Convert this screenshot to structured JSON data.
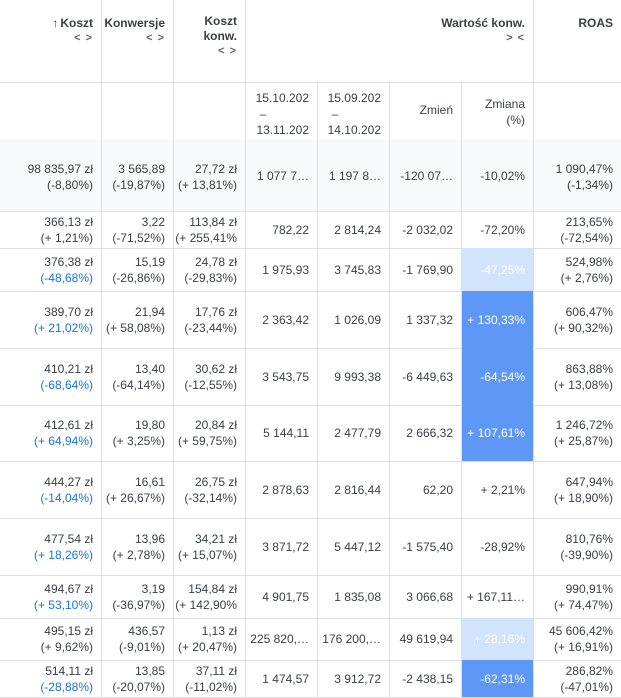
{
  "header": {
    "cost_label": "Koszt",
    "cost_sort_icon": "↑",
    "conversions_label": "Konwersje",
    "cost_per_conv_label_line1": "Koszt",
    "cost_per_conv_label_line2": "konw.",
    "conv_value_label": "Wartość konw.",
    "roas_label": "ROAS",
    "expander": "< >",
    "collapser": "> <"
  },
  "subheader": {
    "period1_line1": "15.10.202",
    "period1_line2": "–",
    "period1_line3": "13.11.202",
    "period2_line1": "15.09.202",
    "period2_line2": "–",
    "period2_line3": "14.10.202",
    "change_label": "Zmień",
    "change_pct_line1": "Zmiana",
    "change_pct_line2": "(%)"
  },
  "total": {
    "cost": "98 835,97 zł",
    "cost_d": "(-8,80%)",
    "conv": "3 565,89",
    "conv_d": "(-19,87%)",
    "cpc": "27,72 zł",
    "cpc_d": "(+ 13,81%)",
    "p1": "1 077 7…",
    "p2": "1 197 8…",
    "chg": "-120 07…",
    "chg_pct": "-10,02%",
    "roas": "1 090,47%",
    "roas_d": "(-1,34%)"
  },
  "rows": [
    {
      "cost": "366,13 zł",
      "cost_d": "(+ 1,21%)",
      "conv": "3,22",
      "conv_d": "(-71,52%)",
      "cpc": "113,84 zł",
      "cpc_d": "(+ 255,41%",
      "p1": "782,22",
      "p2": "2 814,24",
      "chg": "-2 032,02",
      "chg_pct": "-72,20%",
      "roas": "213,65%",
      "roas_d": "(-72,54%)"
    },
    {
      "cost": "376,38 zł",
      "cost_d": "(-48,68%)",
      "conv": "15,19",
      "conv_d": "(-26,86%)",
      "cpc": "24,78 zł",
      "cpc_d": "(-29,83%)",
      "p1": "1 975,93",
      "p2": "3 745,83",
      "chg": "-1 769,90",
      "chg_pct": "-47,25%",
      "roas": "524,98%",
      "roas_d": "(+ 2,76%)"
    },
    {
      "cost": "389,70 zł",
      "cost_d": "(+ 21,02%)",
      "conv": "21,94",
      "conv_d": "(+ 58,08%)",
      "cpc": "17,76 zł",
      "cpc_d": "(-23,44%)",
      "p1": "2 363,42",
      "p2": "1 026,09",
      "chg": "1 337,32",
      "chg_pct": "+ 130,33%",
      "roas": "606,47%",
      "roas_d": "(+ 90,32%)"
    },
    {
      "cost": "410,21 zł",
      "cost_d": "(-68,64%)",
      "conv": "13,40",
      "conv_d": "(-64,14%)",
      "cpc": "30,62 zł",
      "cpc_d": "(-12,55%)",
      "p1": "3 543,75",
      "p2": "9 993,38",
      "chg": "-6 449,63",
      "chg_pct": "-64,54%",
      "roas": "863,88%",
      "roas_d": "(+ 13,08%)"
    },
    {
      "cost": "412,61 zł",
      "cost_d": "(+ 64,94%)",
      "conv": "19,80",
      "conv_d": "(+ 3,25%)",
      "cpc": "20,84 zł",
      "cpc_d": "(+ 59,75%)",
      "p1": "5 144,11",
      "p2": "2 477,79",
      "chg": "2 666,32",
      "chg_pct": "+ 107,61%",
      "roas": "1 246,72%",
      "roas_d": "(+ 25,87%)"
    },
    {
      "cost": "444,27 zł",
      "cost_d": "(-14,04%)",
      "conv": "16,61",
      "conv_d": "(+ 26,67%)",
      "cpc": "26,75 zł",
      "cpc_d": "(-32,14%)",
      "p1": "2 878,63",
      "p2": "2 816,44",
      "chg": "62,20",
      "chg_pct": "+ 2,21%",
      "roas": "647,94%",
      "roas_d": "(+ 18,90%)"
    },
    {
      "cost": "477,54 zł",
      "cost_d": "(+ 18,26%)",
      "conv": "13,96",
      "conv_d": "(+ 2,78%)",
      "cpc": "34,21 zł",
      "cpc_d": "(+ 15,07%)",
      "p1": "3 871,72",
      "p2": "5 447,12",
      "chg": "-1 575,40",
      "chg_pct": "-28,92%",
      "roas": "810,76%",
      "roas_d": "(-39,90%)"
    },
    {
      "cost": "494,67 zł",
      "cost_d": "(+ 53,10%)",
      "conv": "3,19",
      "conv_d": "(-36,97%)",
      "cpc": "154,84 zł",
      "cpc_d": "(+ 142,90%",
      "p1": "4 901,75",
      "p2": "1 835,08",
      "chg": "3 066,68",
      "chg_pct": "+ 167,11…",
      "roas": "990,91%",
      "roas_d": "(+ 74,47%)"
    },
    {
      "cost": "495,15 zł",
      "cost_d": "(+ 9,62%)",
      "conv": "436,57",
      "conv_d": "(-9,01%)",
      "cpc": "1,13 zł",
      "cpc_d": "(+ 20,47%)",
      "p1": "225 820,…",
      "p2": "176 200,…",
      "chg": "49 619,94",
      "chg_pct": "+ 28,16%",
      "roas": "45 606,42%",
      "roas_d": "(+ 16,91%)"
    },
    {
      "cost": "514,11 zł",
      "cost_d": "(-28,88%)",
      "conv": "13,85",
      "conv_d": "(-20,07%)",
      "cpc": "37,11 zł",
      "cpc_d": "(-11,02%)",
      "p1": "1 474,57",
      "p2": "3 912,72",
      "chg": "-2 438,15",
      "chg_pct": "-62,31%",
      "roas": "286,82%",
      "roas_d": "(-47,01%)"
    }
  ],
  "colors": {
    "highlight_light": "#d2e3fc",
    "highlight_dark": "#5e97f6",
    "link_blue": "#1a73e8"
  }
}
